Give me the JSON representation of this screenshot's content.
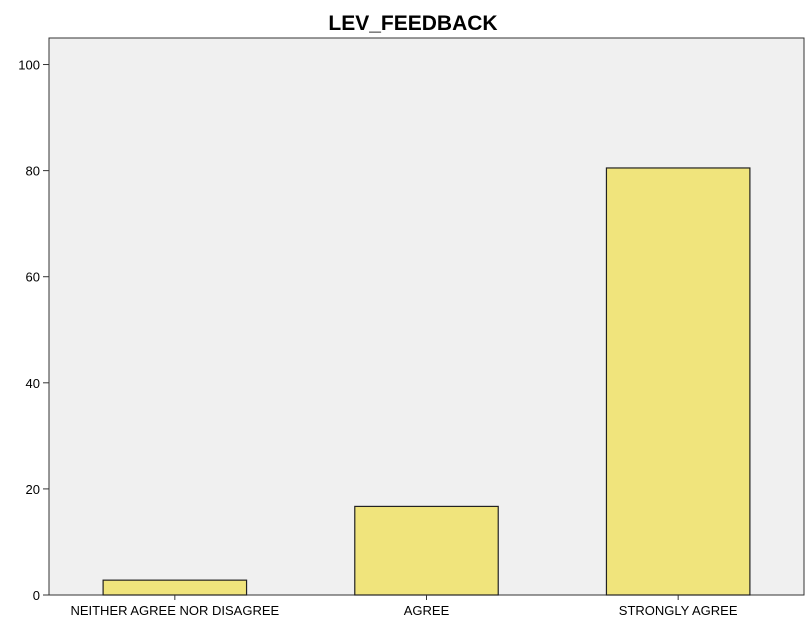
{
  "chart_data": {
    "type": "bar",
    "title": "LEV_FEEDBACK",
    "xlabel": "",
    "ylabel": "",
    "categories": [
      "NEITHER AGREE NOR DISAGREE",
      "AGREE",
      "STRONGLY AGREE"
    ],
    "values": [
      2.8,
      16.7,
      80.5
    ],
    "ylim": [
      0,
      105
    ],
    "yticks": [
      "0",
      "20",
      "40",
      "60",
      "80",
      "100"
    ],
    "grid": false,
    "legend": "none",
    "colors": {
      "plot_background": "#f0f0f0",
      "bar_fill": "#f0e47c",
      "bar_stroke": "#222222",
      "axis": "#333333"
    }
  }
}
